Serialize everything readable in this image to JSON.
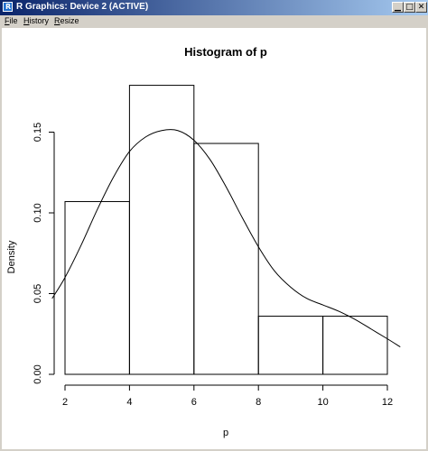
{
  "window": {
    "title": "R Graphics: Device 2 (ACTIVE)",
    "controls": [
      "minimize",
      "maximize",
      "close"
    ]
  },
  "menu": {
    "items": [
      {
        "underline": "F",
        "rest": "ile"
      },
      {
        "underline": "H",
        "rest": "istory"
      },
      {
        "underline": "R",
        "rest": "esize"
      }
    ]
  },
  "chart_data": {
    "type": "histogram",
    "title": "Histogram of p",
    "xlabel": "p",
    "ylabel": "Density",
    "xlim": [
      2,
      12
    ],
    "ylim": [
      0,
      0.18
    ],
    "xticks": [
      2,
      4,
      6,
      8,
      10,
      12
    ],
    "yticks": [
      0.0,
      0.05,
      0.1,
      0.15
    ],
    "ytick_labels": [
      "0.00",
      "0.05",
      "0.10",
      "0.15"
    ],
    "bins": [
      {
        "x0": 2,
        "x1": 4,
        "density": 0.107
      },
      {
        "x0": 4,
        "x1": 6,
        "density": 0.179
      },
      {
        "x0": 6,
        "x1": 8,
        "density": 0.143
      },
      {
        "x0": 8,
        "x1": 10,
        "density": 0.036
      },
      {
        "x0": 10,
        "x1": 12,
        "density": 0.036
      }
    ],
    "density_curve": [
      [
        1.6,
        0.047
      ],
      [
        2.0,
        0.06
      ],
      [
        2.5,
        0.08
      ],
      [
        3.0,
        0.102
      ],
      [
        3.5,
        0.122
      ],
      [
        4.0,
        0.138
      ],
      [
        4.5,
        0.147
      ],
      [
        5.0,
        0.151
      ],
      [
        5.5,
        0.151
      ],
      [
        6.0,
        0.145
      ],
      [
        6.5,
        0.133
      ],
      [
        7.0,
        0.116
      ],
      [
        7.5,
        0.097
      ],
      [
        8.0,
        0.079
      ],
      [
        8.5,
        0.064
      ],
      [
        9.0,
        0.054
      ],
      [
        9.5,
        0.047
      ],
      [
        10.0,
        0.043
      ],
      [
        10.5,
        0.039
      ],
      [
        11.0,
        0.034
      ],
      [
        11.5,
        0.028
      ],
      [
        12.0,
        0.022
      ],
      [
        12.4,
        0.017
      ]
    ]
  }
}
